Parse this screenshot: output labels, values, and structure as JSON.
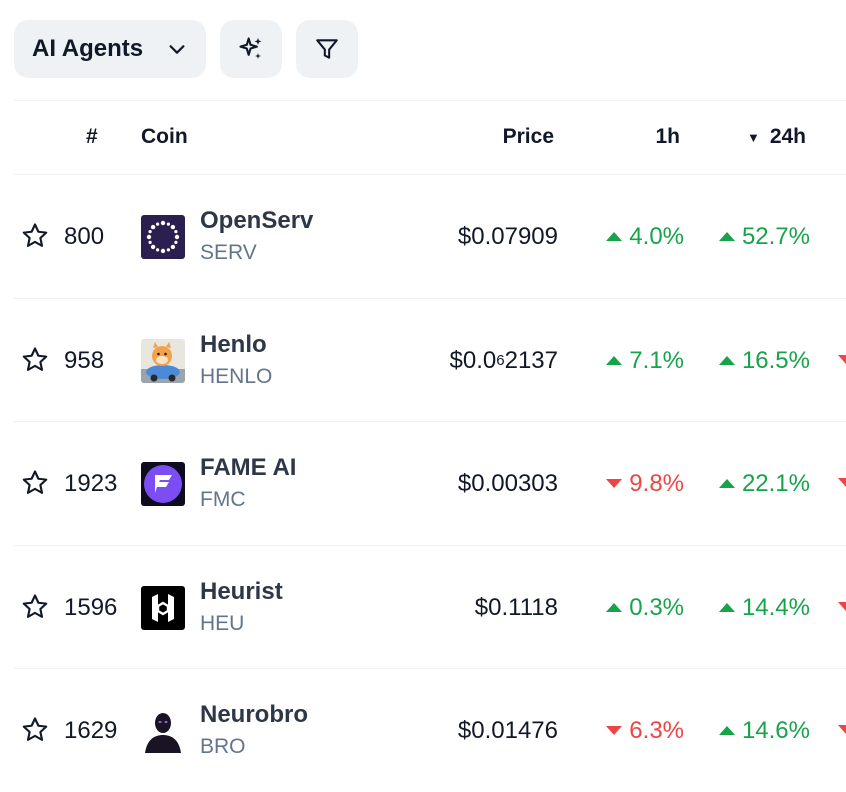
{
  "toolbar": {
    "category_label": "AI Agents",
    "icons": [
      "chevron-down-icon",
      "sparkles-icon",
      "filter-icon"
    ]
  },
  "table": {
    "headers": {
      "rank": "#",
      "coin": "Coin",
      "price": "Price",
      "h1": "1h",
      "h24": "24h"
    },
    "sort_indicator": "▼",
    "rows": [
      {
        "rank": "800",
        "name": "OpenServ",
        "symbol": "SERV",
        "price_main": "$0.07909",
        "price_sub": "",
        "price_tail": "",
        "h1": "4.0%",
        "h1_dir": "up",
        "h24": "52.7%",
        "h24_dir": "up"
      },
      {
        "rank": "958",
        "name": "Henlo",
        "symbol": "HENLO",
        "price_main": "$0.0",
        "price_sub": "6",
        "price_tail": "2137",
        "h1": "7.1%",
        "h1_dir": "up",
        "h24": "16.5%",
        "h24_dir": "up"
      },
      {
        "rank": "1923",
        "name": "FAME AI",
        "symbol": "FMC",
        "price_main": "$0.00303",
        "price_sub": "",
        "price_tail": "",
        "h1": "9.8%",
        "h1_dir": "down",
        "h24": "22.1%",
        "h24_dir": "up"
      },
      {
        "rank": "1596",
        "name": "Heurist",
        "symbol": "HEU",
        "price_main": "$0.1118",
        "price_sub": "",
        "price_tail": "",
        "h1": "0.3%",
        "h1_dir": "up",
        "h24": "14.4%",
        "h24_dir": "up"
      },
      {
        "rank": "1629",
        "name": "Neurobro",
        "symbol": "BRO",
        "price_main": "$0.01476",
        "price_sub": "",
        "price_tail": "",
        "h1": "6.3%",
        "h1_dir": "down",
        "h24": "14.6%",
        "h24_dir": "up"
      }
    ]
  },
  "colors": {
    "up": "#16a34a",
    "down": "#ef4444",
    "pill_bg": "#eff2f5"
  }
}
